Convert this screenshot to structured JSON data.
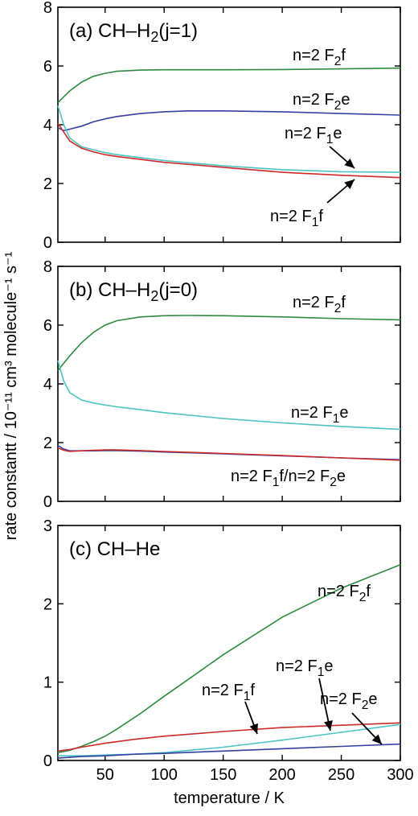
{
  "chart_data": [
    {
      "type": "line",
      "title": "(a) CH–H2(j=1)",
      "xlim": [
        10,
        300
      ],
      "ylim": [
        0,
        8
      ],
      "yticks": [
        0,
        2,
        4,
        6,
        8
      ],
      "series": [
        {
          "name": "n=2 F2f",
          "color": "#2e8b3e",
          "x": [
            10,
            15,
            20,
            30,
            40,
            50,
            60,
            80,
            100,
            150,
            200,
            250,
            300
          ],
          "y": [
            4.75,
            4.95,
            5.15,
            5.45,
            5.65,
            5.75,
            5.82,
            5.86,
            5.87,
            5.87,
            5.88,
            5.9,
            5.93
          ]
        },
        {
          "name": "n=2 F2e",
          "color": "#3340a0",
          "x": [
            10,
            15,
            20,
            30,
            40,
            50,
            60,
            80,
            100,
            120,
            150,
            200,
            250,
            300
          ],
          "y": [
            3.9,
            3.8,
            3.85,
            3.95,
            4.1,
            4.2,
            4.28,
            4.38,
            4.44,
            4.47,
            4.47,
            4.44,
            4.38,
            4.33
          ]
        },
        {
          "name": "n=2 F1e",
          "color": "#4cc4c4",
          "x": [
            10,
            15,
            20,
            30,
            40,
            50,
            60,
            80,
            100,
            150,
            200,
            250,
            300
          ],
          "y": [
            4.65,
            4.0,
            3.55,
            3.25,
            3.15,
            3.05,
            2.98,
            2.88,
            2.78,
            2.6,
            2.47,
            2.4,
            2.38
          ]
        },
        {
          "name": "n=2 F1f",
          "color": "#cc2a2a",
          "x": [
            10,
            15,
            20,
            30,
            40,
            50,
            60,
            80,
            100,
            150,
            200,
            250,
            300
          ],
          "y": [
            4.05,
            3.75,
            3.45,
            3.2,
            3.08,
            2.98,
            2.92,
            2.82,
            2.72,
            2.55,
            2.38,
            2.28,
            2.2
          ]
        }
      ],
      "labels": [
        {
          "sid": "F2f",
          "text": "n=2 F2f"
        },
        {
          "sid": "F2e",
          "text": "n=2 F2e"
        },
        {
          "sid": "F1e",
          "text": "n=2 F1e"
        },
        {
          "sid": "F1f",
          "text": "n=2 F1f"
        }
      ]
    },
    {
      "type": "line",
      "title": "(b) CH–H2(j=0)",
      "xlim": [
        10,
        300
      ],
      "ylim": [
        0,
        8
      ],
      "yticks": [
        0,
        2,
        4,
        6,
        8
      ],
      "series": [
        {
          "name": "n=2 F2f",
          "color": "#2e8b3e",
          "x": [
            10,
            15,
            20,
            30,
            40,
            50,
            60,
            80,
            100,
            120,
            150,
            200,
            250,
            300
          ],
          "y": [
            4.45,
            4.7,
            4.95,
            5.4,
            5.75,
            6.0,
            6.15,
            6.28,
            6.32,
            6.33,
            6.32,
            6.28,
            6.22,
            6.18
          ]
        },
        {
          "name": "n=2 F1e",
          "color": "#4cc4c4",
          "x": [
            10,
            15,
            20,
            30,
            40,
            50,
            60,
            80,
            100,
            150,
            200,
            250,
            300
          ],
          "y": [
            4.8,
            4.1,
            3.7,
            3.45,
            3.35,
            3.28,
            3.22,
            3.12,
            3.02,
            2.82,
            2.67,
            2.55,
            2.45
          ]
        },
        {
          "name": "n=2 F2e",
          "color": "#3340a0",
          "x": [
            10,
            15,
            20,
            30,
            40,
            50,
            60,
            80,
            100,
            150,
            200,
            250,
            300
          ],
          "y": [
            1.9,
            1.78,
            1.72,
            1.72,
            1.72,
            1.73,
            1.73,
            1.71,
            1.68,
            1.62,
            1.55,
            1.48,
            1.42
          ]
        },
        {
          "name": "n=2 F1f",
          "color": "#cc2a2a",
          "x": [
            10,
            15,
            20,
            30,
            40,
            50,
            60,
            80,
            100,
            150,
            200,
            250,
            300
          ],
          "y": [
            1.82,
            1.74,
            1.7,
            1.72,
            1.74,
            1.75,
            1.75,
            1.73,
            1.7,
            1.63,
            1.56,
            1.48,
            1.4
          ]
        }
      ],
      "labels": [
        {
          "sid": "F2f",
          "text": "n=2 F2f"
        },
        {
          "sid": "F1e",
          "text": "n=2 F1e"
        },
        {
          "sid": "F1fF2e",
          "text": "n=2 F1f/n=2 F2e"
        }
      ]
    },
    {
      "type": "line",
      "title": "(c) CH–He",
      "xlim": [
        10,
        300
      ],
      "ylim": [
        0,
        3
      ],
      "yticks": [
        0,
        1,
        2,
        3
      ],
      "xticks": [
        50,
        100,
        150,
        200,
        250,
        300
      ],
      "xlabel": "temperature / K",
      "series": [
        {
          "name": "n=2 F2f",
          "color": "#2e8b3e",
          "x": [
            10,
            20,
            30,
            40,
            50,
            60,
            70,
            80,
            100,
            120,
            150,
            200,
            250,
            300
          ],
          "y": [
            0.1,
            0.13,
            0.18,
            0.24,
            0.31,
            0.4,
            0.5,
            0.6,
            0.82,
            1.03,
            1.35,
            1.83,
            2.2,
            2.5
          ]
        },
        {
          "name": "n=2 F1f",
          "color": "#cc2a2a",
          "x": [
            10,
            20,
            30,
            50,
            75,
            100,
            150,
            200,
            250,
            300
          ],
          "y": [
            0.12,
            0.14,
            0.17,
            0.22,
            0.27,
            0.31,
            0.37,
            0.42,
            0.45,
            0.48
          ]
        },
        {
          "name": "n=2 F1e",
          "color": "#4cc4c4",
          "x": [
            10,
            20,
            30,
            50,
            75,
            100,
            150,
            200,
            250,
            300
          ],
          "y": [
            0.06,
            0.06,
            0.06,
            0.07,
            0.08,
            0.1,
            0.17,
            0.26,
            0.36,
            0.46
          ]
        },
        {
          "name": "n=2 F2e",
          "color": "#3340a0",
          "x": [
            10,
            20,
            30,
            50,
            75,
            100,
            150,
            200,
            250,
            300
          ],
          "y": [
            0.03,
            0.04,
            0.05,
            0.06,
            0.08,
            0.09,
            0.12,
            0.15,
            0.18,
            0.21
          ]
        }
      ],
      "labels": [
        {
          "sid": "F2f",
          "text": "n=2 F2f"
        },
        {
          "sid": "F1e",
          "text": "n=2 F1e"
        },
        {
          "sid": "F1f",
          "text": "n=2 F1f"
        },
        {
          "sid": "F2e",
          "text": "n=2 F2e"
        }
      ]
    }
  ],
  "shared_ylabel": "rate constantt / 10⁻¹¹ cm³ molecule⁻¹ s⁻¹"
}
